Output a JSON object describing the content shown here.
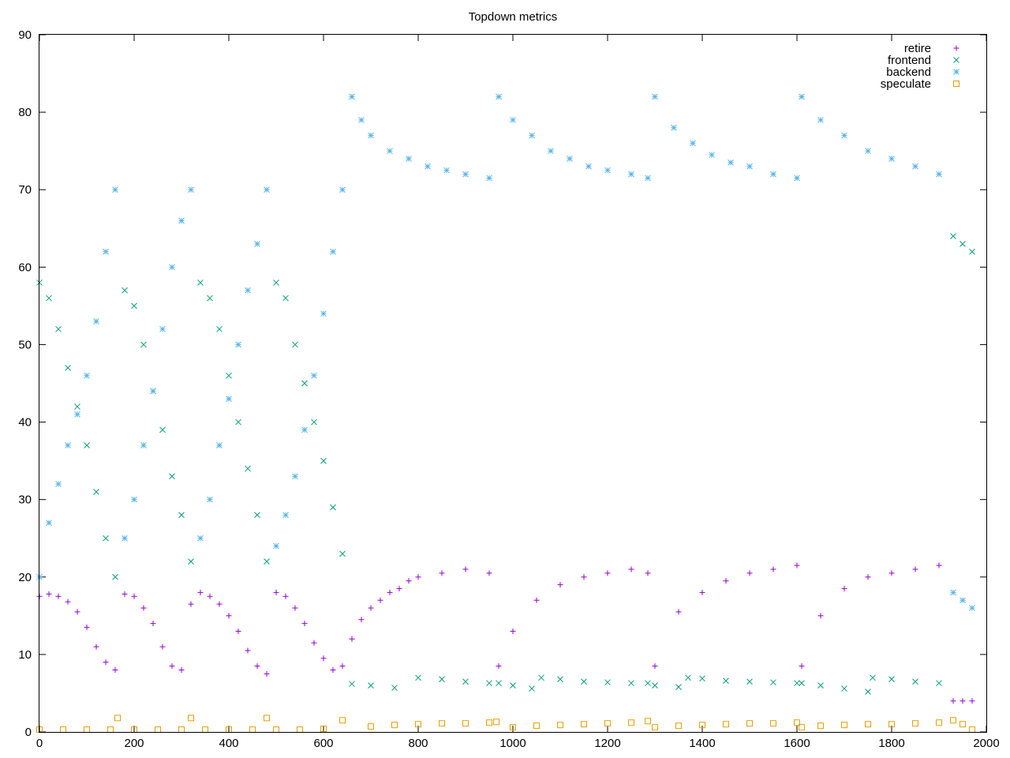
{
  "chart_data": {
    "type": "scatter",
    "title": "Topdown metrics",
    "xlabel": "",
    "ylabel": "",
    "xlim": [
      0,
      2000
    ],
    "ylim": [
      0,
      90
    ],
    "xticks": [
      0,
      200,
      400,
      600,
      800,
      1000,
      1200,
      1400,
      1600,
      1800,
      2000
    ],
    "yticks": [
      0,
      10,
      20,
      30,
      40,
      50,
      60,
      70,
      80,
      90
    ],
    "grid": false,
    "legend_position": "top-right",
    "series": [
      {
        "name": "retire",
        "marker": "plus",
        "color": "#9400d3",
        "x": [
          0,
          20,
          40,
          60,
          80,
          100,
          120,
          140,
          160,
          180,
          200,
          220,
          240,
          260,
          280,
          300,
          320,
          340,
          360,
          380,
          400,
          420,
          440,
          460,
          480,
          500,
          520,
          540,
          560,
          580,
          600,
          620,
          640,
          660,
          680,
          700,
          720,
          740,
          760,
          780,
          800,
          850,
          900,
          950,
          970,
          1000,
          1050,
          1100,
          1150,
          1200,
          1250,
          1285,
          1300,
          1350,
          1400,
          1450,
          1500,
          1550,
          1600,
          1610,
          1650,
          1700,
          1750,
          1800,
          1850,
          1900,
          1930,
          1950,
          1970
        ],
        "y": [
          17.5,
          17.8,
          17.5,
          16.8,
          15.5,
          13.5,
          11.0,
          9.0,
          8.0,
          17.8,
          17.5,
          16.0,
          14.0,
          11.0,
          8.5,
          8.0,
          16.5,
          18.0,
          17.5,
          16.5,
          15.0,
          13.0,
          10.5,
          8.5,
          7.5,
          18.0,
          17.5,
          16.0,
          14.0,
          11.5,
          9.5,
          8.0,
          8.5,
          12.0,
          14.5,
          16.0,
          17.0,
          18.0,
          18.5,
          19.5,
          20.0,
          20.5,
          21.0,
          20.5,
          8.5,
          13.0,
          17.0,
          19.0,
          20.0,
          20.5,
          21.0,
          20.5,
          8.5,
          15.5,
          18.0,
          19.5,
          20.5,
          21.0,
          21.5,
          8.5,
          15.0,
          18.5,
          20.0,
          20.5,
          21.0,
          21.5,
          4.0,
          4.0,
          4.0
        ]
      },
      {
        "name": "frontend",
        "marker": "x",
        "color": "#009e73",
        "x": [
          0,
          20,
          40,
          60,
          80,
          100,
          120,
          140,
          160,
          180,
          200,
          220,
          240,
          260,
          280,
          300,
          320,
          340,
          360,
          380,
          400,
          420,
          440,
          460,
          480,
          500,
          520,
          540,
          560,
          580,
          600,
          620,
          640,
          660,
          700,
          750,
          800,
          850,
          900,
          950,
          970,
          1000,
          1040,
          1060,
          1100,
          1150,
          1200,
          1250,
          1285,
          1300,
          1350,
          1370,
          1400,
          1450,
          1500,
          1550,
          1600,
          1610,
          1650,
          1700,
          1750,
          1760,
          1800,
          1850,
          1900,
          1930,
          1950,
          1970
        ],
        "y": [
          58.0,
          56.0,
          52.0,
          47.0,
          42.0,
          37.0,
          31.0,
          25.0,
          20.0,
          57.0,
          55.0,
          50.0,
          44.0,
          39.0,
          33.0,
          28.0,
          22.0,
          58.0,
          56.0,
          52.0,
          46.0,
          40.0,
          34.0,
          28.0,
          22.0,
          58.0,
          56.0,
          50.0,
          45.0,
          40.0,
          35.0,
          29.0,
          23.0,
          6.2,
          6.0,
          5.7,
          7.0,
          6.8,
          6.5,
          6.3,
          6.3,
          6.0,
          5.6,
          7.0,
          6.8,
          6.5,
          6.4,
          6.3,
          6.3,
          6.0,
          5.8,
          7.0,
          6.9,
          6.6,
          6.5,
          6.4,
          6.3,
          6.3,
          6.0,
          5.6,
          5.2,
          7.0,
          6.8,
          6.5,
          6.3,
          64.0,
          63.0,
          62.0
        ]
      },
      {
        "name": "backend",
        "marker": "star",
        "color": "#56b4e9",
        "x": [
          0,
          20,
          40,
          60,
          80,
          100,
          120,
          140,
          160,
          180,
          200,
          220,
          240,
          260,
          280,
          300,
          320,
          340,
          360,
          380,
          400,
          420,
          440,
          460,
          480,
          500,
          520,
          540,
          560,
          580,
          600,
          620,
          640,
          660,
          680,
          700,
          740,
          780,
          820,
          860,
          900,
          950,
          970,
          1000,
          1040,
          1080,
          1120,
          1160,
          1200,
          1250,
          1285,
          1300,
          1340,
          1380,
          1420,
          1460,
          1500,
          1550,
          1600,
          1610,
          1650,
          1700,
          1750,
          1800,
          1850,
          1900,
          1930,
          1950,
          1970
        ],
        "y": [
          20.0,
          27.0,
          32.0,
          37.0,
          41.0,
          46.0,
          53.0,
          62.0,
          70.0,
          25.0,
          30.0,
          37.0,
          44.0,
          52.0,
          60.0,
          66.0,
          70.0,
          25.0,
          30.0,
          37.0,
          43.0,
          50.0,
          57.0,
          63.0,
          70.0,
          24.0,
          28.0,
          33.0,
          39.0,
          46.0,
          54.0,
          62.0,
          70.0,
          82.0,
          79.0,
          77.0,
          75.0,
          74.0,
          73.0,
          72.5,
          72.0,
          71.5,
          82.0,
          79.0,
          77.0,
          75.0,
          74.0,
          73.0,
          72.5,
          72.0,
          71.5,
          82.0,
          78.0,
          76.0,
          74.5,
          73.5,
          73.0,
          72.0,
          71.5,
          82.0,
          79.0,
          77.0,
          75.0,
          74.0,
          73.0,
          72.0,
          18.0,
          17.0,
          16.0
        ]
      },
      {
        "name": "speculate",
        "marker": "square",
        "color": "#e69f00",
        "x": [
          0,
          50,
          100,
          150,
          165,
          200,
          250,
          300,
          320,
          350,
          400,
          450,
          480,
          500,
          550,
          600,
          640,
          700,
          750,
          800,
          850,
          900,
          950,
          965,
          1000,
          1050,
          1100,
          1150,
          1200,
          1250,
          1285,
          1300,
          1350,
          1400,
          1450,
          1500,
          1550,
          1600,
          1610,
          1650,
          1700,
          1750,
          1800,
          1850,
          1900,
          1930,
          1950,
          1970
        ],
        "y": [
          0.3,
          0.3,
          0.3,
          0.3,
          1.8,
          0.3,
          0.3,
          0.3,
          1.8,
          0.3,
          0.3,
          0.3,
          1.8,
          0.3,
          0.3,
          0.4,
          1.5,
          0.7,
          0.9,
          1.0,
          1.1,
          1.1,
          1.2,
          1.3,
          0.6,
          0.8,
          0.9,
          1.0,
          1.1,
          1.2,
          1.4,
          0.6,
          0.8,
          0.9,
          1.0,
          1.1,
          1.1,
          1.2,
          0.6,
          0.8,
          0.9,
          1.0,
          1.0,
          1.1,
          1.2,
          1.5,
          1.0,
          0.3
        ]
      }
    ]
  }
}
